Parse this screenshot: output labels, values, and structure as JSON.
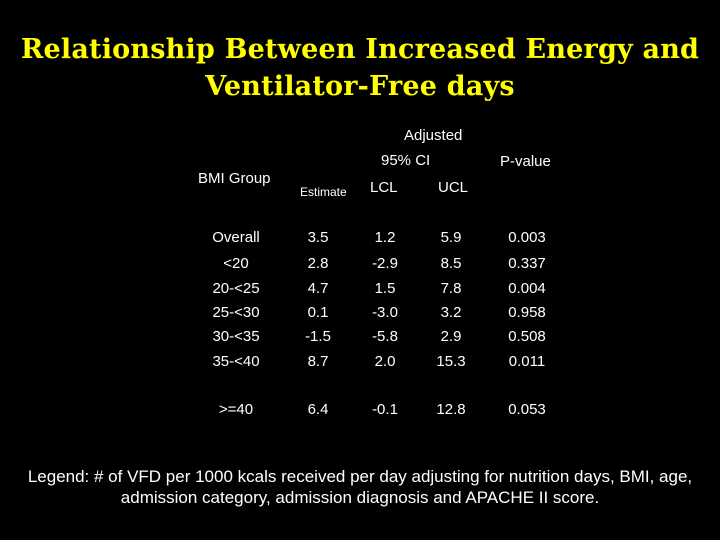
{
  "title": {
    "line1": "Relationship Between Increased Energy and",
    "line2": "Ventilator-Free days"
  },
  "table": {
    "header": {
      "adjusted": "Adjusted",
      "ci": "95% CI",
      "bmi_group": "BMI Group",
      "estimate": "Estimate",
      "lcl": "LCL",
      "ucl": "UCL",
      "p_value": "P-value"
    },
    "rows": [
      {
        "group": "Overall",
        "estimate": "3.5",
        "lcl": "1.2",
        "ucl": "5.9",
        "p": "0.003"
      },
      {
        "group": "<20",
        "estimate": "2.8",
        "lcl": "-2.9",
        "ucl": "8.5",
        "p": "0.337"
      },
      {
        "group": "20-<25",
        "estimate": "4.7",
        "lcl": "1.5",
        "ucl": "7.8",
        "p": "0.004"
      },
      {
        "group": "25-<30",
        "estimate": "0.1",
        "lcl": "-3.0",
        "ucl": "3.2",
        "p": "0.958"
      },
      {
        "group": "30-<35",
        "estimate": "-1.5",
        "lcl": "-5.8",
        "ucl": "2.9",
        "p": "0.508"
      },
      {
        "group": "35-<40",
        "estimate": "8.7",
        "lcl": "2.0",
        "ucl": "15.3",
        "p": "0.011"
      },
      {
        "group": ">=40",
        "estimate": "6.4",
        "lcl": "-0.1",
        "ucl": "12.8",
        "p": "0.053"
      }
    ]
  },
  "legend": {
    "line1": "Legend: # of VFD per 1000 kcals received per day adjusting for nutrition days, BMI, age,",
    "line2": "admission category, admission diagnosis and APACHE II score."
  },
  "colors": {
    "background": "#000000",
    "title": "#FFFF00",
    "text": "#FFFFFF"
  }
}
